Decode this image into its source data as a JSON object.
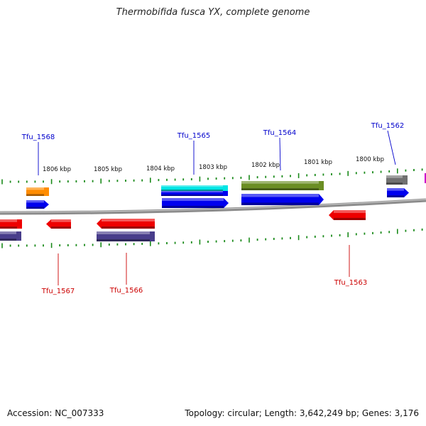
{
  "title": "Thermobifida fusca YX, complete genome",
  "footer": {
    "accession": "Accession: NC_007333",
    "topology": "Topology: circular; Length: 3,642,249 bp; Genes: 3,176"
  },
  "colors": {
    "backbone": "#8c8c8c",
    "tick": "#1a8a1a",
    "label_top": "#0000cc",
    "label_bottom": "#cc0000"
  },
  "scale_labels": [
    "1806 kbp",
    "1805 kbp",
    "1804 kbp",
    "1803 kbp",
    "1802 kbp",
    "1801 kbp",
    "1800 kbp"
  ],
  "gene_labels_top": [
    "Tfu_1568",
    "Tfu_1565",
    "Tfu_1564",
    "Tfu_1562"
  ],
  "gene_labels_bottom": [
    "Tfu_1567",
    "Tfu_1566",
    "Tfu_1563"
  ],
  "features": [
    {
      "name": "orange-feature",
      "color": "#ff8c00"
    },
    {
      "name": "tfu-1568-gene",
      "color": "#0000ee"
    },
    {
      "name": "tfu-1565-cyan-feature",
      "color": "#00e5e5"
    },
    {
      "name": "tfu-1565-blue-feature",
      "color": "#0000ee"
    },
    {
      "name": "tfu-1565-gene",
      "color": "#0000ee"
    },
    {
      "name": "tfu-1564-olive-feature",
      "color": "#6b8e23"
    },
    {
      "name": "tfu-1564-gene",
      "color": "#0000ee"
    },
    {
      "name": "tfu-1562-gray-feature",
      "color": "#707070"
    },
    {
      "name": "tfu-1562-gene",
      "color": "#0000ee"
    },
    {
      "name": "left-edge-red-gene",
      "color": "#ee0000"
    },
    {
      "name": "left-edge-purple-feature",
      "color": "#483d8b"
    },
    {
      "name": "tfu-1567-gene",
      "color": "#ee0000"
    },
    {
      "name": "tfu-1566-gene",
      "color": "#ee0000"
    },
    {
      "name": "tfu-1566-purple-feature",
      "color": "#483d8b"
    },
    {
      "name": "tfu-1563-gene",
      "color": "#ee0000"
    }
  ]
}
